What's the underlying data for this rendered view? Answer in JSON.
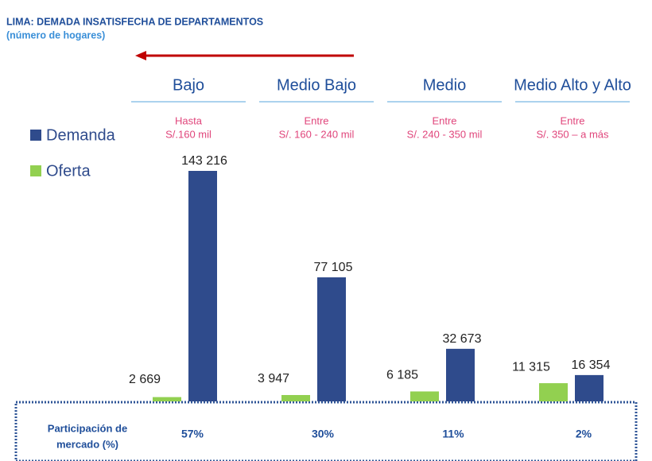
{
  "chart_data": {
    "type": "bar",
    "title": "LIMA: DEMADA INSATISFECHA DE DEPARTAMENTOS",
    "subtitle": "(número de hogares)",
    "categories": [
      "Bajo",
      "Medio Bajo",
      "Medio",
      "Medio Alto y Alto"
    ],
    "category_ranges": [
      [
        "Hasta",
        "S/.160 mil"
      ],
      [
        "Entre",
        "S/. 160 - 240 mil"
      ],
      [
        "Entre",
        "S/. 240 - 350 mil"
      ],
      [
        "Entre",
        "S/. 350 – a más"
      ]
    ],
    "series": [
      {
        "name": "Oferta",
        "color": "#92d050",
        "values": [
          2669,
          3947,
          6185,
          11315
        ],
        "value_labels": [
          "2 669",
          "3 947",
          "6 185",
          "11 315"
        ]
      },
      {
        "name": "Demanda",
        "color": "#2f4b8c",
        "values": [
          143216,
          77105,
          32673,
          16354
        ],
        "value_labels": [
          "143 216",
          "77 105",
          "32 673",
          "16 354"
        ]
      }
    ],
    "market_share": {
      "label": [
        "Participación de",
        "mercado (%)"
      ],
      "values": [
        57,
        30,
        11,
        2
      ],
      "value_labels": [
        "57%",
        "30%",
        "11%",
        "2%"
      ]
    }
  }
}
